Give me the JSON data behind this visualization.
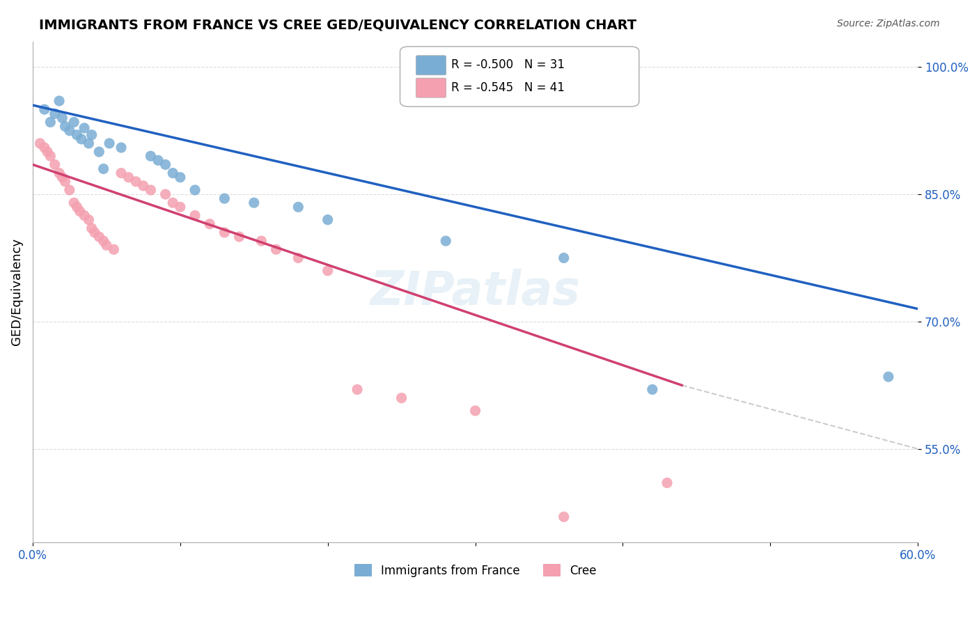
{
  "title": "IMMIGRANTS FROM FRANCE VS CREE GED/EQUIVALENCY CORRELATION CHART",
  "source": "Source: ZipAtlas.com",
  "xlabel": "",
  "ylabel": "GED/Equivalency",
  "xmin": 0.0,
  "xmax": 0.6,
  "ymin": 0.44,
  "ymax": 1.03,
  "yticks": [
    0.55,
    0.7,
    0.85,
    1.0
  ],
  "ytick_labels": [
    "55.0%",
    "70.0%",
    "85.0%",
    "100.0%"
  ],
  "xticks": [
    0.0,
    0.1,
    0.2,
    0.3,
    0.4,
    0.5,
    0.6
  ],
  "xtick_labels": [
    "0.0%",
    "",
    "",
    "",
    "",
    "",
    "60.0%"
  ],
  "r_blue": -0.5,
  "n_blue": 31,
  "r_pink": -0.545,
  "n_pink": 41,
  "blue_scatter_x": [
    0.008,
    0.012,
    0.018,
    0.022,
    0.025,
    0.03,
    0.033,
    0.038,
    0.045,
    0.048,
    0.015,
    0.02,
    0.028,
    0.035,
    0.04,
    0.052,
    0.06,
    0.08,
    0.085,
    0.09,
    0.095,
    0.1,
    0.11,
    0.13,
    0.15,
    0.18,
    0.2,
    0.28,
    0.36,
    0.42,
    0.58
  ],
  "blue_scatter_y": [
    0.95,
    0.935,
    0.96,
    0.93,
    0.925,
    0.92,
    0.915,
    0.91,
    0.9,
    0.88,
    0.945,
    0.94,
    0.935,
    0.928,
    0.92,
    0.91,
    0.905,
    0.895,
    0.89,
    0.885,
    0.875,
    0.87,
    0.855,
    0.845,
    0.84,
    0.835,
    0.82,
    0.795,
    0.775,
    0.62,
    0.635
  ],
  "pink_scatter_x": [
    0.005,
    0.008,
    0.01,
    0.012,
    0.015,
    0.018,
    0.02,
    0.022,
    0.025,
    0.028,
    0.03,
    0.032,
    0.035,
    0.038,
    0.04,
    0.042,
    0.045,
    0.048,
    0.05,
    0.055,
    0.06,
    0.065,
    0.07,
    0.075,
    0.08,
    0.09,
    0.095,
    0.1,
    0.11,
    0.12,
    0.13,
    0.14,
    0.155,
    0.165,
    0.18,
    0.2,
    0.22,
    0.25,
    0.3,
    0.36,
    0.43
  ],
  "pink_scatter_y": [
    0.91,
    0.905,
    0.9,
    0.895,
    0.885,
    0.875,
    0.87,
    0.865,
    0.855,
    0.84,
    0.835,
    0.83,
    0.825,
    0.82,
    0.81,
    0.805,
    0.8,
    0.795,
    0.79,
    0.785,
    0.875,
    0.87,
    0.865,
    0.86,
    0.855,
    0.85,
    0.84,
    0.835,
    0.825,
    0.815,
    0.805,
    0.8,
    0.795,
    0.785,
    0.775,
    0.76,
    0.62,
    0.61,
    0.595,
    0.47,
    0.51
  ],
  "blue_line_x": [
    0.0,
    0.6
  ],
  "blue_line_y": [
    0.955,
    0.715
  ],
  "pink_line_x": [
    0.0,
    0.44
  ],
  "pink_line_y": [
    0.885,
    0.625
  ],
  "dashed_line_x": [
    0.44,
    0.6
  ],
  "dashed_line_y": [
    0.625,
    0.55
  ],
  "blue_color": "#7aadd4",
  "pink_color": "#f4a0b0",
  "blue_line_color": "#2060c0",
  "pink_line_color": "#d04070",
  "dashed_line_color": "#cccccc",
  "watermark": "ZIPatlas",
  "background_color": "#ffffff",
  "grid_color": "#dddddd"
}
